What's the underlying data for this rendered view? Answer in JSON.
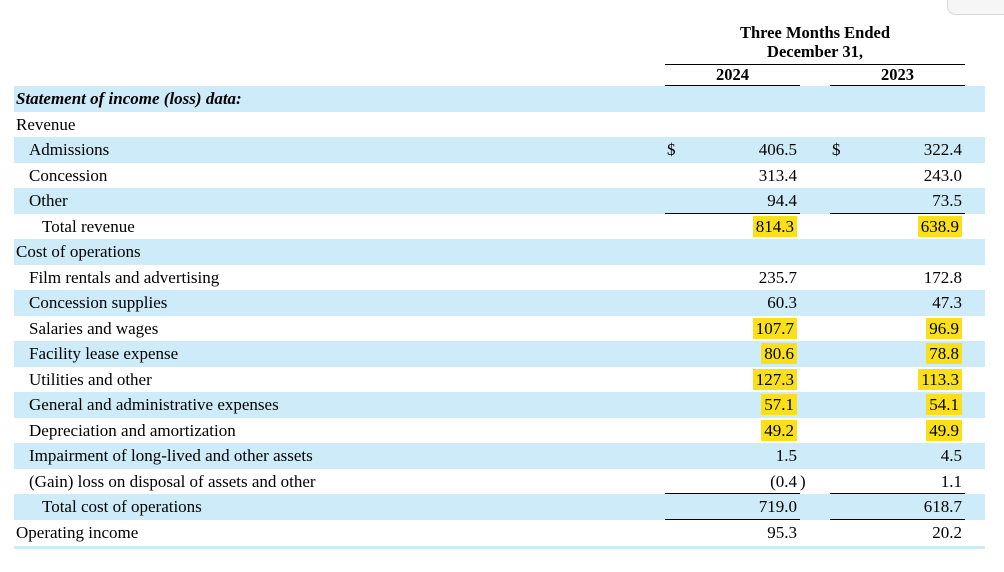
{
  "header": {
    "period_title_line1": "Three Months Ended",
    "period_title_line2": "December 31,",
    "columns": [
      "2024",
      "2023"
    ]
  },
  "colors": {
    "row_shade": "#cdebf8",
    "highlight": "#f9e01a",
    "rule": "#000000",
    "text": "#000000"
  },
  "rows": [
    {
      "label": "Statement of income (loss) data:",
      "indent": 0,
      "shade": true,
      "emph": true
    },
    {
      "label": "Revenue",
      "indent": 0,
      "shade": false
    },
    {
      "label": "Admissions",
      "indent": 1,
      "shade": true,
      "cells": [
        {
          "cur": "$",
          "amt": "406.5"
        },
        {
          "cur": "$",
          "amt": "322.4"
        }
      ]
    },
    {
      "label": "Concession",
      "indent": 1,
      "shade": false,
      "cells": [
        {
          "amt": "313.4"
        },
        {
          "amt": "243.0"
        }
      ]
    },
    {
      "label": "Other",
      "indent": 1,
      "shade": true,
      "rule_below": true,
      "cells": [
        {
          "amt": "94.4"
        },
        {
          "amt": "73.5"
        }
      ]
    },
    {
      "label": "Total revenue",
      "indent": 2,
      "shade": false,
      "cells": [
        {
          "amt": "814.3",
          "hl": true
        },
        {
          "amt": "638.9",
          "hl": true
        }
      ]
    },
    {
      "label": "Cost of operations",
      "indent": 0,
      "shade": true
    },
    {
      "label": "Film rentals and advertising",
      "indent": 1,
      "shade": false,
      "cells": [
        {
          "amt": "235.7"
        },
        {
          "amt": "172.8"
        }
      ]
    },
    {
      "label": "Concession supplies",
      "indent": 1,
      "shade": true,
      "cells": [
        {
          "amt": "60.3"
        },
        {
          "amt": "47.3"
        }
      ]
    },
    {
      "label": "Salaries and wages",
      "indent": 1,
      "shade": false,
      "cells": [
        {
          "amt": "107.7",
          "hl": true
        },
        {
          "amt": "96.9",
          "hl": true
        }
      ]
    },
    {
      "label": "Facility lease expense",
      "indent": 1,
      "shade": true,
      "cells": [
        {
          "amt": "80.6",
          "hl": true
        },
        {
          "amt": "78.8",
          "hl": true
        }
      ]
    },
    {
      "label": "Utilities and other",
      "indent": 1,
      "shade": false,
      "cells": [
        {
          "amt": "127.3",
          "hl": true
        },
        {
          "amt": "113.3",
          "hl": true
        }
      ]
    },
    {
      "label": "General and administrative expenses",
      "indent": 1,
      "shade": true,
      "cells": [
        {
          "amt": "57.1",
          "hl": true
        },
        {
          "amt": "54.1",
          "hl": true
        }
      ]
    },
    {
      "label": "Depreciation and amortization",
      "indent": 1,
      "shade": false,
      "cells": [
        {
          "amt": "49.2",
          "hl": true
        },
        {
          "amt": "49.9",
          "hl": true
        }
      ]
    },
    {
      "label": "Impairment of long-lived and other assets",
      "indent": 1,
      "shade": true,
      "cells": [
        {
          "amt": "1.5"
        },
        {
          "amt": "4.5"
        }
      ]
    },
    {
      "label": "(Gain) loss on disposal of assets and other",
      "indent": 1,
      "shade": false,
      "rule_below": true,
      "cells": [
        {
          "amt": "(0.4",
          "paren": ")"
        },
        {
          "amt": "1.1"
        }
      ]
    },
    {
      "label": "Total cost of operations",
      "indent": 2,
      "shade": true,
      "rule_below": true,
      "cells": [
        {
          "amt": "719.0"
        },
        {
          "amt": "618.7"
        }
      ]
    },
    {
      "label": "Operating income",
      "indent": 0,
      "shade": false,
      "cells": [
        {
          "amt": "95.3"
        },
        {
          "amt": "20.2"
        }
      ]
    }
  ]
}
